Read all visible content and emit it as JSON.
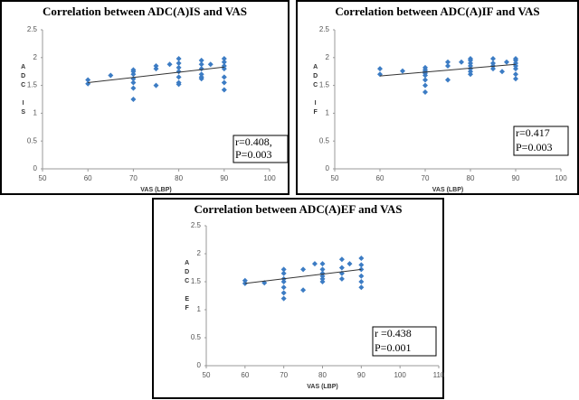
{
  "chart_data": [
    {
      "type": "scatter",
      "title": "Correlation between ADC(A)IS and VAS",
      "x_label": "VAS (LBP)",
      "y_label": "ADC IS",
      "x": [
        60,
        60,
        65,
        70,
        70,
        70,
        70,
        70,
        70,
        70,
        75,
        75,
        75,
        78,
        80,
        80,
        80,
        80,
        80,
        80,
        80,
        85,
        85,
        85,
        85,
        85,
        85,
        87,
        90,
        90,
        90,
        90,
        90,
        90,
        90
      ],
      "values": [
        1.6,
        1.53,
        1.68,
        1.75,
        1.7,
        1.62,
        1.55,
        1.45,
        1.25,
        1.78,
        1.85,
        1.8,
        1.5,
        1.88,
        1.98,
        1.9,
        1.82,
        1.75,
        1.65,
        1.55,
        1.52,
        1.95,
        1.88,
        1.8,
        1.7,
        1.65,
        1.62,
        1.88,
        1.98,
        1.92,
        1.85,
        1.8,
        1.65,
        1.55,
        1.42
      ],
      "color": "#3c7cc4",
      "xlim": [
        50,
        100
      ],
      "xticks": [
        50,
        60,
        70,
        80,
        90,
        100
      ],
      "ylim": [
        0,
        2.5
      ],
      "yticks": [
        0,
        0.5,
        1,
        1.5,
        2,
        2.5
      ],
      "trendline": {
        "x": [
          60,
          90
        ],
        "y": [
          1.55,
          1.83
        ]
      },
      "annotations": [
        "r=0.408,",
        "P=0.003"
      ]
    },
    {
      "type": "scatter",
      "title": "Correlation between ADC(A)IF and VAS",
      "x_label": "VAS (LBP)",
      "y_label": "ADC  IF",
      "x": [
        60,
        60,
        65,
        70,
        70,
        70,
        70,
        70,
        70,
        70,
        70,
        75,
        75,
        75,
        78,
        80,
        80,
        80,
        80,
        80,
        80,
        80,
        85,
        85,
        85,
        85,
        87,
        88,
        90,
        90,
        90,
        90,
        90,
        90,
        90
      ],
      "values": [
        1.8,
        1.7,
        1.76,
        1.82,
        1.78,
        1.75,
        1.72,
        1.68,
        1.6,
        1.5,
        1.38,
        1.92,
        1.85,
        1.6,
        1.92,
        1.98,
        1.95,
        1.9,
        1.85,
        1.8,
        1.75,
        1.7,
        1.98,
        1.9,
        1.85,
        1.8,
        1.75,
        1.92,
        1.98,
        1.95,
        1.9,
        1.85,
        1.8,
        1.7,
        1.62
      ],
      "color": "#3c7cc4",
      "xlim": [
        50,
        100
      ],
      "xticks": [
        50,
        60,
        70,
        80,
        90,
        100
      ],
      "ylim": [
        0,
        2.5
      ],
      "yticks": [
        0,
        0.5,
        1,
        1.5,
        2,
        2.5
      ],
      "trendline": {
        "x": [
          60,
          90
        ],
        "y": [
          1.67,
          1.88
        ]
      },
      "annotations": [
        "r=0.417",
        "P=0.003"
      ]
    },
    {
      "type": "scatter",
      "title": "Correlation between ADC(A)EF and VAS",
      "x_label": "VAS (LBP)",
      "y_label": "ADC  EF",
      "x": [
        60,
        60,
        65,
        70,
        70,
        70,
        70,
        70,
        70,
        70,
        75,
        75,
        78,
        80,
        80,
        80,
        80,
        80,
        80,
        85,
        85,
        85,
        85,
        87,
        90,
        90,
        90,
        90,
        90,
        90
      ],
      "values": [
        1.52,
        1.47,
        1.48,
        1.72,
        1.65,
        1.55,
        1.5,
        1.4,
        1.3,
        1.2,
        1.72,
        1.35,
        1.82,
        1.82,
        1.72,
        1.65,
        1.6,
        1.55,
        1.5,
        1.9,
        1.75,
        1.65,
        1.55,
        1.82,
        1.92,
        1.8,
        1.72,
        1.6,
        1.5,
        1.4
      ],
      "color": "#3c7cc4",
      "xlim": [
        50,
        110
      ],
      "xticks": [
        50,
        60,
        70,
        80,
        90,
        100,
        110
      ],
      "ylim": [
        0,
        2.5
      ],
      "yticks": [
        0,
        0.5,
        1,
        1.5,
        2,
        2.5
      ],
      "trendline": {
        "x": [
          60,
          90
        ],
        "y": [
          1.47,
          1.72
        ]
      },
      "annotations": [
        "r =0.438",
        "P=0.001"
      ]
    }
  ]
}
